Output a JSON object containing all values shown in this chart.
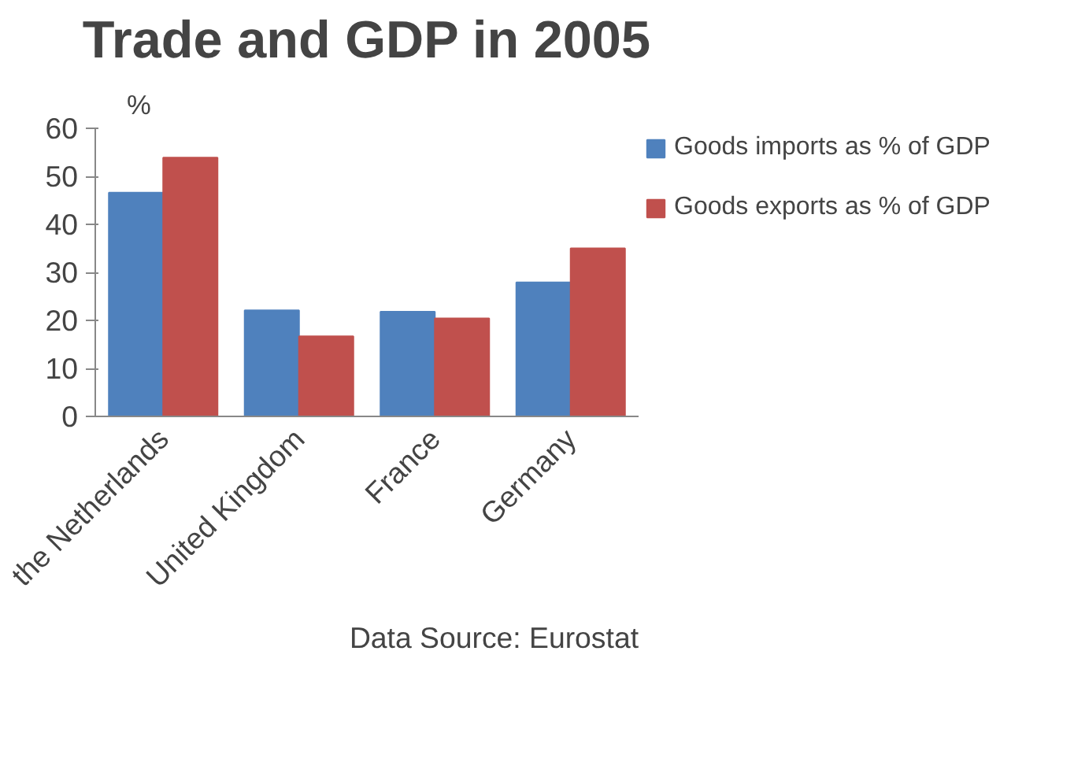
{
  "chart_data": {
    "type": "bar",
    "title": "Trade and GDP in 2005",
    "ylabel": "%",
    "categories": [
      "the Netherlands",
      "United Kingdom",
      "France",
      "Germany"
    ],
    "series": [
      {
        "name": "Goods imports as % of GDP",
        "color": "#4f81bd",
        "values": [
          46.6,
          22.1,
          21.8,
          27.9
        ]
      },
      {
        "name": "Goods exports as % of GDP",
        "color": "#c0504d",
        "values": [
          53.9,
          16.7,
          20.4,
          35.0
        ]
      }
    ],
    "ylim": [
      0,
      60
    ],
    "yticks": [
      0,
      10,
      20,
      30,
      40,
      50,
      60
    ],
    "grid": false,
    "legend": "right",
    "annotations": [
      "Data Source: Eurostat"
    ]
  }
}
